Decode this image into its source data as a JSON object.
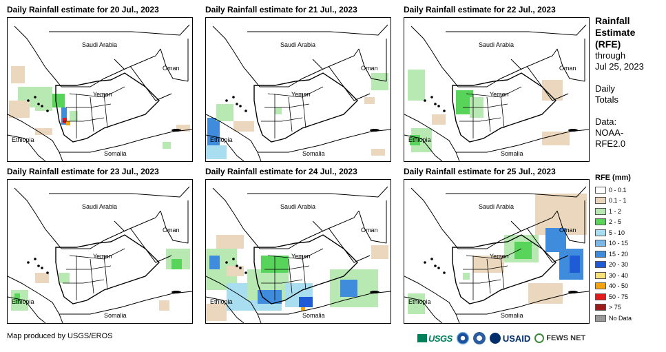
{
  "panels": [
    {
      "title": "Daily Rainfall estimate for 20 Jul., 2023",
      "rain": [
        {
          "c": "#ead7bd",
          "x": 5,
          "y": 70,
          "w": 20,
          "h": 25
        },
        {
          "c": "#b8e9b3",
          "x": 15,
          "y": 100,
          "w": 25,
          "h": 30
        },
        {
          "c": "#ead7bd",
          "x": 2,
          "y": 120,
          "w": 30,
          "h": 25
        },
        {
          "c": "#58d45a",
          "x": 65,
          "y": 110,
          "w": 18,
          "h": 20
        },
        {
          "c": "#b8e9b3",
          "x": 40,
          "y": 100,
          "w": 25,
          "h": 35
        },
        {
          "c": "#3f8bdc",
          "x": 78,
          "y": 130,
          "w": 8,
          "h": 25
        },
        {
          "c": "#e41a1c",
          "x": 80,
          "y": 145,
          "w": 6,
          "h": 8
        },
        {
          "c": "#f3a40c",
          "x": 85,
          "y": 150,
          "w": 6,
          "h": 6
        },
        {
          "c": "#b8e9b3",
          "x": 90,
          "y": 135,
          "w": 12,
          "h": 15
        },
        {
          "c": "#ead7bd",
          "x": 40,
          "y": 160,
          "w": 25,
          "h": 10
        },
        {
          "c": "#b8e9b3",
          "x": 225,
          "y": 180,
          "w": 12,
          "h": 10
        },
        {
          "c": "#ead7bd",
          "x": 245,
          "y": 155,
          "w": 20,
          "h": 10
        }
      ]
    },
    {
      "title": "Daily Rainfall estimate for 21 Jul., 2023",
      "rain": [
        {
          "c": "#3f8bdc",
          "x": 2,
          "y": 145,
          "w": 18,
          "h": 40
        },
        {
          "c": "#b8e9b3",
          "x": 15,
          "y": 125,
          "w": 25,
          "h": 25
        },
        {
          "c": "#a8def0",
          "x": 0,
          "y": 185,
          "w": 30,
          "h": 20
        },
        {
          "c": "#ead7bd",
          "x": 40,
          "y": 150,
          "w": 30,
          "h": 15
        },
        {
          "c": "#b8e9b3",
          "x": 240,
          "y": 80,
          "w": 25,
          "h": 25
        },
        {
          "c": "#ead7bd",
          "x": 230,
          "y": 115,
          "w": 15,
          "h": 10
        },
        {
          "c": "#ead7bd",
          "x": 240,
          "y": 190,
          "w": 20,
          "h": 10
        },
        {
          "c": "#b8e9b3",
          "x": 100,
          "y": 130,
          "w": 10,
          "h": 10
        }
      ]
    },
    {
      "title": "Daily Rainfall estimate for 22 Jul., 2023",
      "rain": [
        {
          "c": "#b8e9b3",
          "x": 5,
          "y": 75,
          "w": 25,
          "h": 45
        },
        {
          "c": "#58d45a",
          "x": 75,
          "y": 105,
          "w": 25,
          "h": 35
        },
        {
          "c": "#b8e9b3",
          "x": 95,
          "y": 115,
          "w": 20,
          "h": 30
        },
        {
          "c": "#ead7bd",
          "x": 200,
          "y": 90,
          "w": 30,
          "h": 30
        },
        {
          "c": "#b8e9b3",
          "x": 10,
          "y": 160,
          "w": 30,
          "h": 35
        },
        {
          "c": "#ead7bd",
          "x": 40,
          "y": 140,
          "w": 20,
          "h": 15
        },
        {
          "c": "#58d45a",
          "x": 8,
          "y": 170,
          "w": 15,
          "h": 15
        },
        {
          "c": "#ead7bd",
          "x": 200,
          "y": 165,
          "w": 40,
          "h": 20
        }
      ]
    },
    {
      "title": "Daily Rainfall estimate for 23 Jul., 2023",
      "rain": [
        {
          "c": "#b8e9b3",
          "x": 230,
          "y": 100,
          "w": 35,
          "h": 30
        },
        {
          "c": "#58d45a",
          "x": 238,
          "y": 115,
          "w": 15,
          "h": 15
        },
        {
          "c": "#b8e9b3",
          "x": 5,
          "y": 160,
          "w": 25,
          "h": 30
        },
        {
          "c": "#58d45a",
          "x": 10,
          "y": 165,
          "w": 8,
          "h": 15
        },
        {
          "c": "#ead7bd",
          "x": 40,
          "y": 135,
          "w": 20,
          "h": 15
        },
        {
          "c": "#b8e9b3",
          "x": 75,
          "y": 135,
          "w": 15,
          "h": 15
        },
        {
          "c": "#ead7bd",
          "x": 220,
          "y": 175,
          "w": 15,
          "h": 15
        }
      ]
    },
    {
      "title": "Daily Rainfall estimate for 24 Jul., 2023",
      "rain": [
        {
          "c": "#b8e9b3",
          "x": 0,
          "y": 100,
          "w": 45,
          "h": 60
        },
        {
          "c": "#ead7bd",
          "x": 15,
          "y": 80,
          "w": 40,
          "h": 20
        },
        {
          "c": "#3f8bdc",
          "x": 5,
          "y": 110,
          "w": 15,
          "h": 20
        },
        {
          "c": "#a8def0",
          "x": 30,
          "y": 150,
          "w": 80,
          "h": 40
        },
        {
          "c": "#b8e9b3",
          "x": 60,
          "y": 130,
          "w": 60,
          "h": 45
        },
        {
          "c": "#58d45a",
          "x": 80,
          "y": 110,
          "w": 40,
          "h": 25
        },
        {
          "c": "#3f8bdc",
          "x": 75,
          "y": 160,
          "w": 35,
          "h": 20
        },
        {
          "c": "#a8def0",
          "x": 115,
          "y": 150,
          "w": 40,
          "h": 35
        },
        {
          "c": "#b8e9b3",
          "x": 180,
          "y": 130,
          "w": 70,
          "h": 55
        },
        {
          "c": "#3f8bdc",
          "x": 195,
          "y": 145,
          "w": 25,
          "h": 25
        },
        {
          "c": "#ead7bd",
          "x": 0,
          "y": 180,
          "w": 30,
          "h": 25
        },
        {
          "c": "#1e5bd4",
          "x": 135,
          "y": 170,
          "w": 20,
          "h": 15
        },
        {
          "c": "#f3a40c",
          "x": 138,
          "y": 185,
          "w": 6,
          "h": 5
        },
        {
          "c": "#ead7bd",
          "x": 240,
          "y": 95,
          "w": 25,
          "h": 20
        },
        {
          "c": "#ead7bd",
          "x": 30,
          "y": 125,
          "w": 25,
          "h": 15
        }
      ]
    },
    {
      "title": "Daily Rainfall estimate for 25 Jul., 2023",
      "rain": [
        {
          "c": "#ead7bd",
          "x": 190,
          "y": 20,
          "w": 75,
          "h": 60
        },
        {
          "c": "#3f8bdc",
          "x": 205,
          "y": 70,
          "w": 30,
          "h": 35
        },
        {
          "c": "#b8e9b3",
          "x": 145,
          "y": 80,
          "w": 50,
          "h": 40
        },
        {
          "c": "#58d45a",
          "x": 160,
          "y": 90,
          "w": 25,
          "h": 25
        },
        {
          "c": "#3f8bdc",
          "x": 225,
          "y": 100,
          "w": 35,
          "h": 45
        },
        {
          "c": "#1e5bd4",
          "x": 240,
          "y": 110,
          "w": 15,
          "h": 25
        },
        {
          "c": "#ead7bd",
          "x": 100,
          "y": 110,
          "w": 45,
          "h": 25
        },
        {
          "c": "#b8e9b3",
          "x": 5,
          "y": 165,
          "w": 25,
          "h": 30
        },
        {
          "c": "#ead7bd",
          "x": 180,
          "y": 150,
          "w": 50,
          "h": 30
        },
        {
          "c": "#b8e9b3",
          "x": 85,
          "y": 135,
          "w": 10,
          "h": 10
        }
      ]
    }
  ],
  "map_labels": {
    "saudi": "Saudi Arabia",
    "oman": "Oman",
    "yemen": "Yemen",
    "ethiopia": "Ethiopia",
    "somalia": "Somalia"
  },
  "sidebar": {
    "title_lines": [
      "Rainfall",
      "Estimate",
      "(RFE)"
    ],
    "through_label": "through",
    "date_label": "Jul 25, 2023",
    "daily_lines": [
      "Daily",
      "Totals"
    ],
    "data_lines": [
      "Data:",
      "NOAA-",
      "RFE2.0"
    ]
  },
  "legend": {
    "title": "RFE (mm)",
    "items": [
      {
        "label": "0 - 0.1",
        "color": "#ffffff"
      },
      {
        "label": "0.1 - 1",
        "color": "#ead7bd"
      },
      {
        "label": "1 - 2",
        "color": "#b8e9b3"
      },
      {
        "label": "2 - 5",
        "color": "#58d45a"
      },
      {
        "label": "5 - 10",
        "color": "#a8def0"
      },
      {
        "label": "10 - 15",
        "color": "#7ab8ea"
      },
      {
        "label": "15 - 20",
        "color": "#3f8bdc"
      },
      {
        "label": "20 - 30",
        "color": "#1e5bd4"
      },
      {
        "label": "30 - 40",
        "color": "#f7e27a"
      },
      {
        "label": "40 - 50",
        "color": "#f3a40c"
      },
      {
        "label": "50 - 75",
        "color": "#e41a1c"
      },
      {
        "label": "> 75",
        "color": "#9e1b1b"
      },
      {
        "label": "No Data",
        "color": "#999999"
      }
    ]
  },
  "footer": {
    "credit": "Map produced by USGS/EROS",
    "logos": [
      "USGS",
      "USAID",
      "FEWS NET"
    ]
  }
}
